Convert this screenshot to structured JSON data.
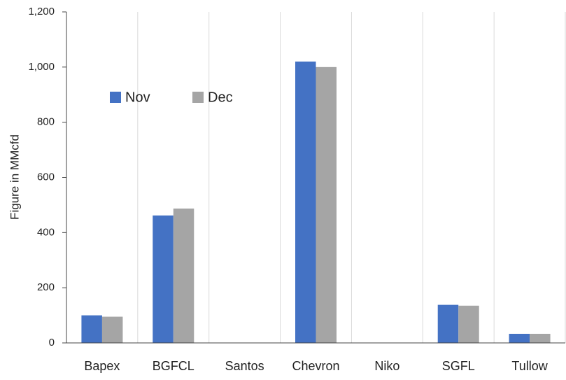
{
  "chart_data": {
    "type": "bar",
    "y_label": "Figure in MMcfd",
    "categories": [
      "Bapex",
      "BGFCL",
      "Santos",
      "Chevron",
      "Niko",
      "SGFL",
      "Tullow"
    ],
    "series": [
      {
        "name": "Nov",
        "color": "#4472c4",
        "values": [
          100,
          462,
          0,
          1020,
          0,
          138,
          33
        ]
      },
      {
        "name": "Dec",
        "color": "#a5a5a5",
        "values": [
          95,
          487,
          0,
          1000,
          0,
          135,
          33
        ]
      }
    ],
    "ylim": [
      0,
      1200
    ],
    "yticks": [
      0,
      200,
      400,
      600,
      800,
      {
        "value": 1000,
        "label": "1,000"
      },
      {
        "value": 1200,
        "label": "1,200"
      }
    ],
    "vertical_grid": true,
    "legend": "upper left"
  }
}
